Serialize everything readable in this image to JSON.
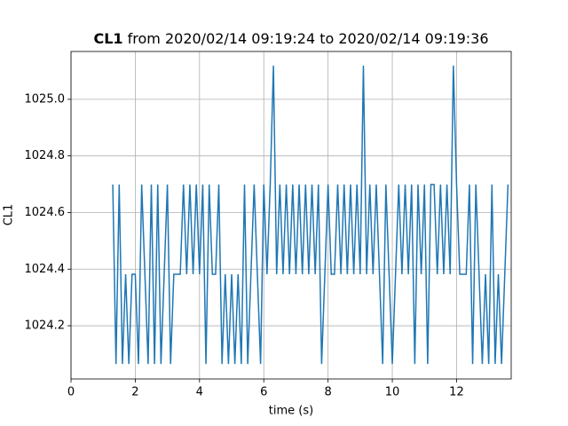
{
  "chart_data": {
    "type": "line",
    "title": {
      "bold": "CL1",
      "rest": "from 2020/02/14 09:19:24 to 2020/02/14 09:19:36"
    },
    "xlabel": "time (s)",
    "ylabel": "CL1",
    "xlim": [
      0,
      13.7
    ],
    "ylim": [
      1024.012,
      1025.169
    ],
    "xticks": [
      0,
      2,
      4,
      6,
      8,
      10,
      12
    ],
    "yticks": [
      1024.2,
      1024.4,
      1024.6,
      1024.8,
      {
        "value": 1025,
        "label": "1025.0"
      }
    ],
    "grid": true,
    "x": [
      1.3,
      1.4,
      1.5,
      1.6,
      1.7,
      1.8,
      1.9,
      2.0,
      2.1,
      2.2,
      2.3,
      2.4,
      2.5,
      2.6,
      2.7,
      2.8,
      2.9,
      3.0,
      3.1,
      3.2,
      3.3,
      3.4,
      3.5,
      3.6,
      3.7,
      3.8,
      3.9,
      4.0,
      4.1,
      4.2,
      4.3,
      4.4,
      4.5,
      4.6,
      4.7,
      4.8,
      4.9,
      5.0,
      5.1,
      5.2,
      5.3,
      5.4,
      5.5,
      5.6,
      5.7,
      5.8,
      5.9,
      6.0,
      6.1,
      6.2,
      6.3,
      6.4,
      6.5,
      6.6,
      6.7,
      6.8,
      6.9,
      7.0,
      7.1,
      7.2,
      7.3,
      7.4,
      7.5,
      7.6,
      7.7,
      7.8,
      7.9,
      8.0,
      8.1,
      8.2,
      8.3,
      8.4,
      8.5,
      8.6,
      8.7,
      8.8,
      8.9,
      9.0,
      9.1,
      9.2,
      9.3,
      9.4,
      9.5,
      9.6,
      9.7,
      9.8,
      9.9,
      10.0,
      10.1,
      10.2,
      10.3,
      10.4,
      10.5,
      10.6,
      10.7,
      10.8,
      10.9,
      11.0,
      11.1,
      11.2,
      11.3,
      11.4,
      11.5,
      11.6,
      11.7,
      11.8,
      11.9,
      12.0,
      12.1,
      12.2,
      12.3,
      12.4,
      12.5,
      12.6,
      12.7,
      12.8,
      12.9,
      13.0,
      13.1,
      13.2,
      13.3,
      13.4,
      13.5,
      13.6
    ],
    "series": [
      {
        "name": "CL1",
        "color": "#1f77b4",
        "values": [
          1024.699,
          1024.065,
          1024.699,
          1024.065,
          1024.382,
          1024.065,
          1024.382,
          1024.382,
          1024.065,
          1024.699,
          1024.382,
          1024.065,
          1024.699,
          1024.065,
          1024.699,
          1024.065,
          1024.382,
          1024.699,
          1024.065,
          1024.382,
          1024.382,
          1024.382,
          1024.699,
          1024.382,
          1024.699,
          1024.382,
          1024.699,
          1024.382,
          1024.699,
          1024.065,
          1024.699,
          1024.382,
          1024.382,
          1024.699,
          1024.065,
          1024.382,
          1024.065,
          1024.382,
          1024.065,
          1024.382,
          1024.065,
          1024.699,
          1024.065,
          1024.382,
          1024.699,
          1024.382,
          1024.065,
          1024.699,
          1024.382,
          1024.699,
          1025.119,
          1024.382,
          1024.699,
          1024.382,
          1024.699,
          1024.382,
          1024.699,
          1024.382,
          1024.699,
          1024.382,
          1024.699,
          1024.382,
          1024.699,
          1024.382,
          1024.699,
          1024.065,
          1024.382,
          1024.699,
          1024.382,
          1024.382,
          1024.699,
          1024.382,
          1024.699,
          1024.382,
          1024.699,
          1024.382,
          1024.699,
          1024.382,
          1025.119,
          1024.382,
          1024.699,
          1024.382,
          1024.699,
          1024.382,
          1024.065,
          1024.699,
          1024.382,
          1024.065,
          1024.382,
          1024.699,
          1024.382,
          1024.699,
          1024.382,
          1024.699,
          1024.065,
          1024.699,
          1024.382,
          1024.699,
          1024.065,
          1024.699,
          1024.699,
          1024.382,
          1024.699,
          1024.382,
          1024.699,
          1024.382,
          1025.119,
          1024.699,
          1024.382,
          1024.382,
          1024.382,
          1024.699,
          1024.065,
          1024.699,
          1024.382,
          1024.065,
          1024.382,
          1024.065,
          1024.699,
          1024.065,
          1024.382,
          1024.065,
          1024.382,
          1024.699
        ]
      }
    ]
  }
}
